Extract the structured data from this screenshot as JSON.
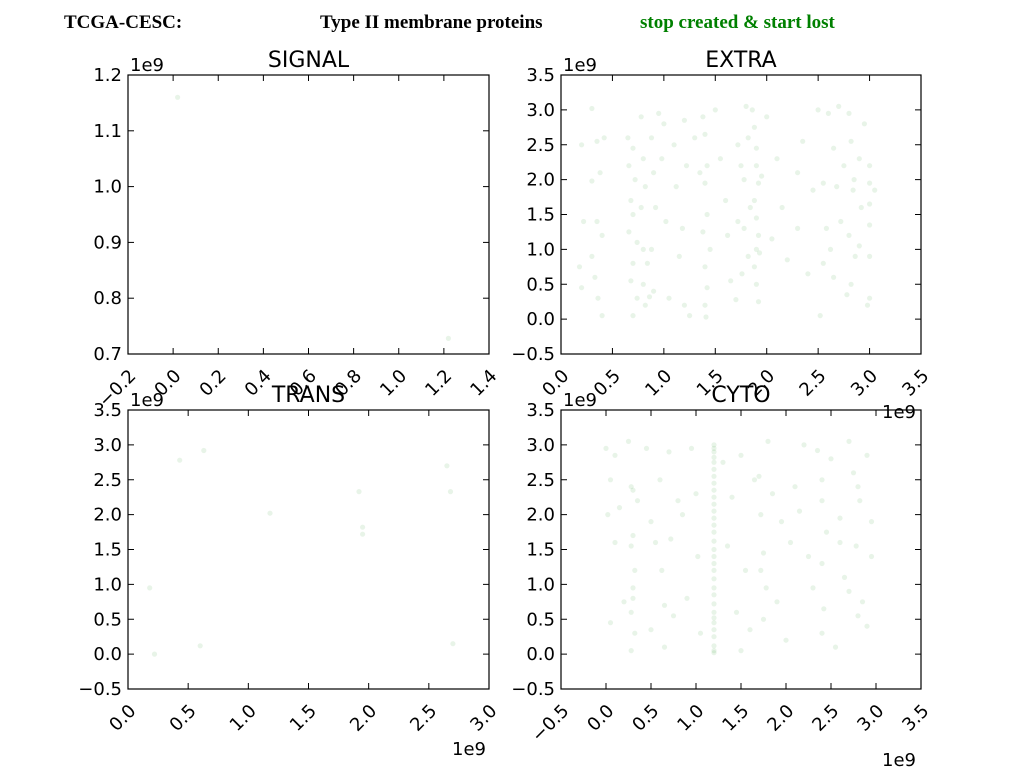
{
  "header": {
    "dataset": "TCGA-CESC:",
    "protein_type": "Type II membrane proteins",
    "mutation": "stop created & start lost",
    "mutation_color": "#008000"
  },
  "point_color": "#008000",
  "chart_data": [
    {
      "type": "scatter",
      "title": "SIGNAL",
      "xlim": [
        -0.2,
        1.4
      ],
      "ylim": [
        0.7,
        1.2
      ],
      "xticks": [
        "-0.2",
        "0.0",
        "0.2",
        "0.4",
        "0.6",
        "0.8",
        "1.0",
        "1.2",
        "1.4"
      ],
      "yticks": [
        "0.7",
        "0.8",
        "0.9",
        "1.0",
        "1.1",
        "1.2"
      ],
      "x_multiplier": "",
      "y_multiplier": "1e9",
      "points": [
        [
          0.02,
          1.16
        ],
        [
          1.22,
          0.728
        ]
      ]
    },
    {
      "type": "scatter",
      "title": "EXTRA",
      "xlim": [
        0.0,
        3.5
      ],
      "ylim": [
        -0.5,
        3.5
      ],
      "xticks": [
        "0.0",
        "0.5",
        "1.0",
        "1.5",
        "2.0",
        "2.5",
        "3.0",
        "3.5"
      ],
      "yticks": [
        "-0.5",
        "0.0",
        "0.5",
        "1.0",
        "1.5",
        "2.0",
        "2.5",
        "3.0",
        "3.5"
      ],
      "x_multiplier": "1e9",
      "y_multiplier": "1e9",
      "points": [
        [
          0.3,
          3.02
        ],
        [
          0.35,
          2.55
        ],
        [
          0.38,
          2.1
        ],
        [
          0.3,
          1.98
        ],
        [
          0.35,
          1.4
        ],
        [
          0.4,
          1.2
        ],
        [
          0.3,
          0.9
        ],
        [
          0.33,
          0.6
        ],
        [
          0.36,
          0.3
        ],
        [
          0.2,
          0.45
        ],
        [
          0.22,
          1.4
        ],
        [
          0.18,
          0.75
        ],
        [
          0.2,
          2.5
        ],
        [
          0.42,
          2.6
        ],
        [
          0.4,
          0.05
        ],
        [
          0.65,
          2.6
        ],
        [
          0.7,
          2.45
        ],
        [
          0.66,
          2.2
        ],
        [
          0.72,
          2.0
        ],
        [
          0.68,
          1.7
        ],
        [
          0.7,
          1.5
        ],
        [
          0.66,
          1.25
        ],
        [
          0.74,
          1.1
        ],
        [
          0.7,
          0.8
        ],
        [
          0.68,
          0.55
        ],
        [
          0.74,
          0.3
        ],
        [
          0.7,
          0.05
        ],
        [
          0.78,
          2.9
        ],
        [
          0.8,
          2.3
        ],
        [
          0.82,
          1.9
        ],
        [
          0.78,
          1.6
        ],
        [
          0.8,
          1.0
        ],
        [
          0.84,
          0.8
        ],
        [
          0.8,
          0.5
        ],
        [
          0.82,
          0.2
        ],
        [
          0.86,
          0.32
        ],
        [
          0.88,
          2.6
        ],
        [
          0.9,
          2.1
        ],
        [
          0.92,
          1.6
        ],
        [
          0.88,
          1.0
        ],
        [
          0.9,
          0.4
        ],
        [
          0.95,
          2.95
        ],
        [
          0.98,
          2.3
        ],
        [
          1.0,
          2.8
        ],
        [
          1.02,
          1.4
        ],
        [
          1.05,
          0.3
        ],
        [
          1.1,
          2.5
        ],
        [
          1.12,
          1.9
        ],
        [
          1.15,
          0.9
        ],
        [
          1.2,
          2.85
        ],
        [
          1.22,
          2.2
        ],
        [
          1.18,
          1.3
        ],
        [
          1.2,
          0.2
        ],
        [
          1.25,
          0.05
        ],
        [
          1.3,
          2.6
        ],
        [
          1.35,
          2.1
        ],
        [
          1.38,
          2.9
        ],
        [
          1.4,
          2.65
        ],
        [
          1.42,
          2.2
        ],
        [
          1.4,
          1.95
        ],
        [
          1.42,
          1.5
        ],
        [
          1.38,
          1.25
        ],
        [
          1.4,
          0.75
        ],
        [
          1.42,
          0.45
        ],
        [
          1.4,
          0.2
        ],
        [
          1.41,
          0.03
        ],
        [
          1.45,
          1.0
        ],
        [
          1.5,
          3.0
        ],
        [
          1.55,
          2.3
        ],
        [
          1.6,
          1.7
        ],
        [
          1.62,
          1.2
        ],
        [
          1.65,
          0.55
        ],
        [
          1.7,
          0.28
        ],
        [
          1.72,
          2.5
        ],
        [
          1.75,
          2.2
        ],
        [
          1.72,
          1.4
        ],
        [
          1.76,
          0.65
        ],
        [
          1.78,
          1.3
        ],
        [
          1.8,
          3.05
        ],
        [
          1.82,
          2.6
        ],
        [
          1.78,
          2.0
        ],
        [
          1.84,
          1.6
        ],
        [
          1.82,
          0.9
        ],
        [
          1.86,
          3.0
        ],
        [
          1.88,
          2.75
        ],
        [
          1.9,
          2.45
        ],
        [
          1.9,
          2.2
        ],
        [
          1.92,
          1.95
        ],
        [
          1.88,
          1.7
        ],
        [
          1.9,
          1.45
        ],
        [
          1.92,
          1.2
        ],
        [
          1.9,
          1.0
        ],
        [
          1.88,
          0.75
        ],
        [
          1.9,
          0.5
        ],
        [
          1.92,
          0.25
        ],
        [
          1.93,
          0.95
        ],
        [
          1.95,
          2.05
        ],
        [
          2.0,
          2.9
        ],
        [
          2.05,
          1.15
        ],
        [
          2.1,
          2.3
        ],
        [
          2.15,
          1.6
        ],
        [
          2.2,
          0.85
        ],
        [
          2.3,
          2.1
        ],
        [
          2.35,
          2.55
        ],
        [
          2.4,
          0.65
        ],
        [
          2.45,
          1.85
        ],
        [
          2.5,
          3.0
        ],
        [
          2.52,
          0.05
        ],
        [
          2.55,
          1.95
        ],
        [
          2.58,
          1.3
        ],
        [
          2.55,
          0.8
        ],
        [
          2.6,
          2.95
        ],
        [
          2.65,
          2.45
        ],
        [
          2.68,
          1.9
        ],
        [
          2.62,
          1.0
        ],
        [
          2.65,
          0.6
        ],
        [
          2.7,
          3.05
        ],
        [
          2.75,
          2.2
        ],
        [
          2.72,
          1.4
        ],
        [
          2.78,
          0.35
        ],
        [
          2.8,
          2.95
        ],
        [
          2.82,
          2.55
        ],
        [
          2.85,
          2.0
        ],
        [
          2.84,
          1.85
        ],
        [
          2.8,
          1.2
        ],
        [
          2.86,
          0.9
        ],
        [
          2.82,
          0.5
        ],
        [
          2.9,
          2.3
        ],
        [
          2.92,
          1.6
        ],
        [
          2.95,
          2.8
        ],
        [
          3.0,
          2.2
        ],
        [
          3.0,
          1.95
        ],
        [
          3.0,
          1.65
        ],
        [
          3.0,
          1.35
        ],
        [
          3.0,
          0.9
        ],
        [
          3.0,
          0.3
        ],
        [
          2.98,
          0.2
        ],
        [
          3.05,
          1.85
        ],
        [
          2.9,
          1.05
        ],
        [
          2.3,
          1.3
        ]
      ]
    },
    {
      "type": "scatter",
      "title": "TRANS",
      "xlim": [
        0.0,
        3.0
      ],
      "ylim": [
        -0.5,
        3.5
      ],
      "xticks": [
        "0.0",
        "0.5",
        "1.0",
        "1.5",
        "2.0",
        "2.5",
        "3.0"
      ],
      "yticks": [
        "-0.5",
        "0.0",
        "0.5",
        "1.0",
        "1.5",
        "2.0",
        "2.5",
        "3.0",
        "3.5"
      ],
      "x_multiplier": "1e9",
      "y_multiplier": "1e9",
      "points": [
        [
          0.18,
          0.95
        ],
        [
          0.22,
          0.0
        ],
        [
          0.43,
          2.78
        ],
        [
          0.6,
          0.12
        ],
        [
          0.63,
          2.92
        ],
        [
          1.18,
          2.02
        ],
        [
          1.92,
          2.33
        ],
        [
          1.95,
          1.82
        ],
        [
          1.95,
          1.72
        ],
        [
          2.65,
          2.7
        ],
        [
          2.68,
          2.33
        ],
        [
          2.7,
          0.15
        ]
      ]
    },
    {
      "type": "scatter",
      "title": "CYTO",
      "xlim": [
        -0.5,
        3.5
      ],
      "ylim": [
        -0.5,
        3.5
      ],
      "xticks": [
        "-0.5",
        "0.0",
        "0.5",
        "1.0",
        "1.5",
        "2.0",
        "2.5",
        "3.0",
        "3.5"
      ],
      "yticks": [
        "-0.5",
        "0.0",
        "0.5",
        "1.0",
        "1.5",
        "2.0",
        "2.5",
        "3.0",
        "3.5"
      ],
      "x_multiplier": "1e9",
      "y_multiplier": "1e9",
      "points": [
        [
          1.2,
          3.0
        ],
        [
          1.2,
          2.95
        ],
        [
          1.2,
          2.9
        ],
        [
          1.2,
          2.82
        ],
        [
          1.2,
          2.75
        ],
        [
          1.2,
          2.65
        ],
        [
          1.2,
          2.55
        ],
        [
          1.2,
          2.45
        ],
        [
          1.2,
          2.35
        ],
        [
          1.2,
          2.25
        ],
        [
          1.2,
          2.15
        ],
        [
          1.2,
          2.05
        ],
        [
          1.2,
          1.95
        ],
        [
          1.2,
          1.85
        ],
        [
          1.2,
          1.75
        ],
        [
          1.2,
          1.62
        ],
        [
          1.2,
          1.5
        ],
        [
          1.2,
          1.4
        ],
        [
          1.2,
          1.3
        ],
        [
          1.2,
          1.2
        ],
        [
          1.2,
          1.08
        ],
        [
          1.2,
          0.95
        ],
        [
          1.2,
          0.85
        ],
        [
          1.2,
          0.72
        ],
        [
          1.2,
          0.6
        ],
        [
          1.2,
          0.52
        ],
        [
          1.2,
          0.45
        ],
        [
          1.2,
          0.35
        ],
        [
          1.2,
          0.25
        ],
        [
          1.2,
          0.12
        ],
        [
          1.2,
          0.05
        ],
        [
          1.2,
          0.02
        ],
        [
          0.0,
          2.95
        ],
        [
          0.05,
          2.5
        ],
        [
          0.02,
          2.0
        ],
        [
          0.1,
          1.6
        ],
        [
          0.05,
          0.45
        ],
        [
          0.1,
          2.85
        ],
        [
          0.15,
          2.1
        ],
        [
          0.2,
          0.75
        ],
        [
          0.25,
          3.05
        ],
        [
          0.28,
          2.4
        ],
        [
          0.3,
          2.35
        ],
        [
          0.3,
          1.7
        ],
        [
          0.28,
          1.55
        ],
        [
          0.32,
          1.2
        ],
        [
          0.3,
          0.95
        ],
        [
          0.3,
          0.8
        ],
        [
          0.28,
          0.6
        ],
        [
          0.32,
          0.3
        ],
        [
          0.28,
          0.05
        ],
        [
          0.35,
          2.2
        ],
        [
          0.45,
          2.95
        ],
        [
          0.5,
          1.9
        ],
        [
          0.5,
          0.35
        ],
        [
          0.55,
          1.6
        ],
        [
          0.6,
          2.5
        ],
        [
          0.62,
          1.2
        ],
        [
          0.65,
          0.1
        ],
        [
          0.7,
          2.9
        ],
        [
          0.72,
          1.65
        ],
        [
          0.75,
          0.55
        ],
        [
          0.8,
          2.2
        ],
        [
          0.85,
          2.0
        ],
        [
          0.9,
          0.8
        ],
        [
          0.95,
          2.95
        ],
        [
          1.0,
          2.3
        ],
        [
          1.02,
          1.4
        ],
        [
          1.05,
          0.3
        ],
        [
          1.3,
          2.75
        ],
        [
          1.35,
          1.55
        ],
        [
          1.4,
          2.25
        ],
        [
          1.45,
          0.6
        ],
        [
          1.5,
          2.85
        ],
        [
          1.55,
          1.2
        ],
        [
          1.6,
          0.35
        ],
        [
          1.65,
          2.5
        ],
        [
          1.7,
          2.55
        ],
        [
          1.72,
          2.0
        ],
        [
          1.75,
          1.45
        ],
        [
          1.72,
          1.2
        ],
        [
          1.78,
          0.95
        ],
        [
          1.75,
          0.5
        ],
        [
          1.8,
          3.05
        ],
        [
          1.85,
          2.3
        ],
        [
          1.9,
          0.75
        ],
        [
          1.95,
          1.9
        ],
        [
          2.0,
          0.2
        ],
        [
          2.05,
          1.6
        ],
        [
          2.1,
          2.4
        ],
        [
          2.15,
          2.05
        ],
        [
          2.2,
          3.0
        ],
        [
          2.25,
          1.4
        ],
        [
          2.3,
          0.95
        ],
        [
          2.35,
          2.92
        ],
        [
          2.4,
          2.5
        ],
        [
          2.4,
          2.2
        ],
        [
          2.45,
          1.75
        ],
        [
          2.4,
          1.3
        ],
        [
          2.42,
          0.65
        ],
        [
          2.4,
          0.3
        ],
        [
          2.5,
          2.8
        ],
        [
          2.55,
          0.1
        ],
        [
          2.6,
          1.95
        ],
        [
          2.65,
          1.1
        ],
        [
          2.7,
          3.05
        ],
        [
          2.75,
          2.6
        ],
        [
          2.8,
          2.4
        ],
        [
          2.82,
          2.2
        ],
        [
          2.78,
          1.55
        ],
        [
          2.8,
          0.55
        ],
        [
          2.85,
          0.75
        ],
        [
          2.9,
          2.85
        ],
        [
          2.95,
          1.9
        ],
        [
          2.95,
          1.4
        ],
        [
          2.9,
          0.4
        ],
        [
          2.6,
          1.6
        ],
        [
          2.7,
          0.9
        ],
        [
          0.65,
          0.7
        ],
        [
          1.5,
          0.05
        ]
      ]
    }
  ]
}
